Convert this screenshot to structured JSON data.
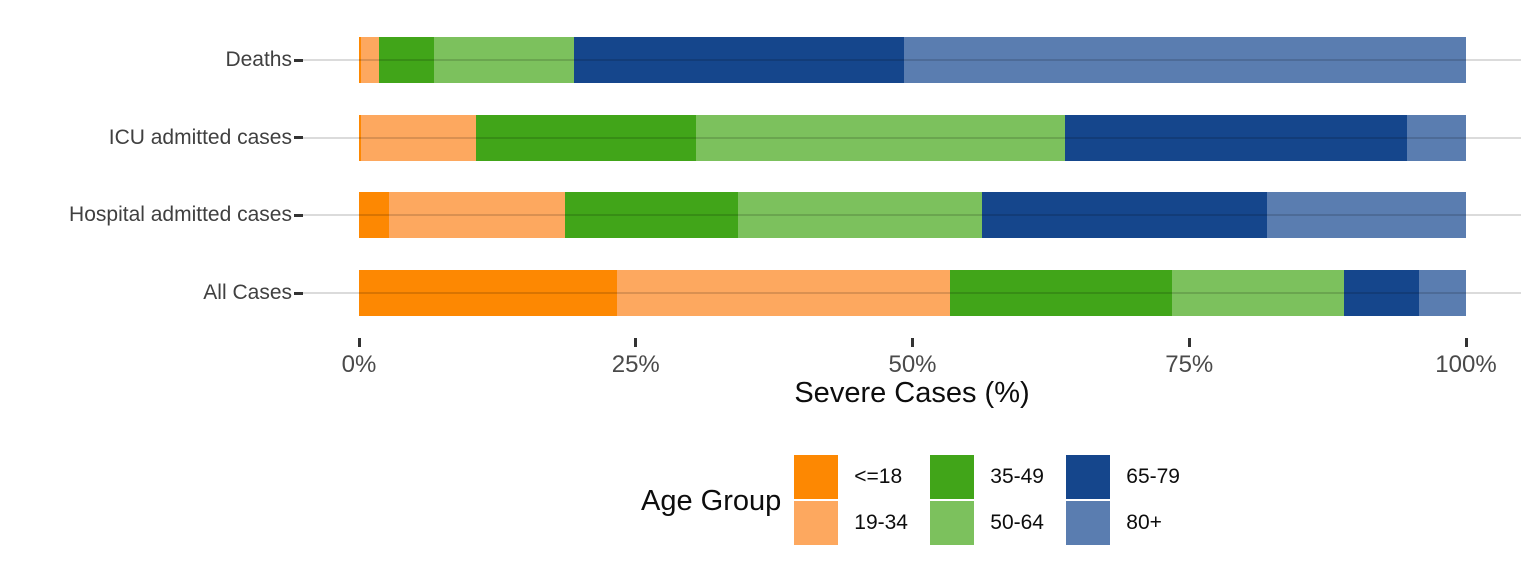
{
  "chart_data": {
    "type": "bar",
    "orientation": "horizontal",
    "stacked": true,
    "stack_total": 100,
    "title": "",
    "xlabel": "Severe Cases (%)",
    "ylabel": "",
    "xlim": [
      0,
      100
    ],
    "x_ticks": [
      {
        "label": "0%",
        "value": 0
      },
      {
        "label": "25%",
        "value": 25
      },
      {
        "label": "50%",
        "value": 50
      },
      {
        "label": "75%",
        "value": 75
      },
      {
        "label": "100%",
        "value": 100
      }
    ],
    "grid": "horizontal-major-only",
    "categories": [
      "Deaths",
      "ICU admitted cases",
      "Hospital admitted cases",
      "All Cases"
    ],
    "series": [
      {
        "name": "<=18",
        "color": "#FD8802",
        "values": [
          0.2,
          0.2,
          2.7,
          23.3
        ]
      },
      {
        "name": "19-34",
        "color": "#FDA85F",
        "values": [
          1.6,
          10.4,
          15.9,
          30.1
        ]
      },
      {
        "name": "35-49",
        "color": "#41A519",
        "values": [
          5.0,
          19.8,
          15.6,
          20.0
        ]
      },
      {
        "name": "50-64",
        "color": "#7CC15D",
        "values": [
          12.6,
          33.4,
          22.1,
          15.6
        ]
      },
      {
        "name": "65-79",
        "color": "#15468C",
        "values": [
          29.8,
          30.9,
          25.7,
          6.8
        ]
      },
      {
        "name": "80+",
        "color": "#5A7DB0",
        "values": [
          50.8,
          5.3,
          18.0,
          4.2
        ]
      }
    ],
    "legend": {
      "title": "Age Group",
      "position": "bottom",
      "rows": 2,
      "columns": 3,
      "order": "column-major"
    },
    "style_colors": {
      "background": "#FFFFFF",
      "gridline": "rgba(0,0,0,0.14)",
      "axis_text": "#4a4a4a",
      "axis_title": "#0d0d0d",
      "tick_mark": "#333333"
    }
  }
}
